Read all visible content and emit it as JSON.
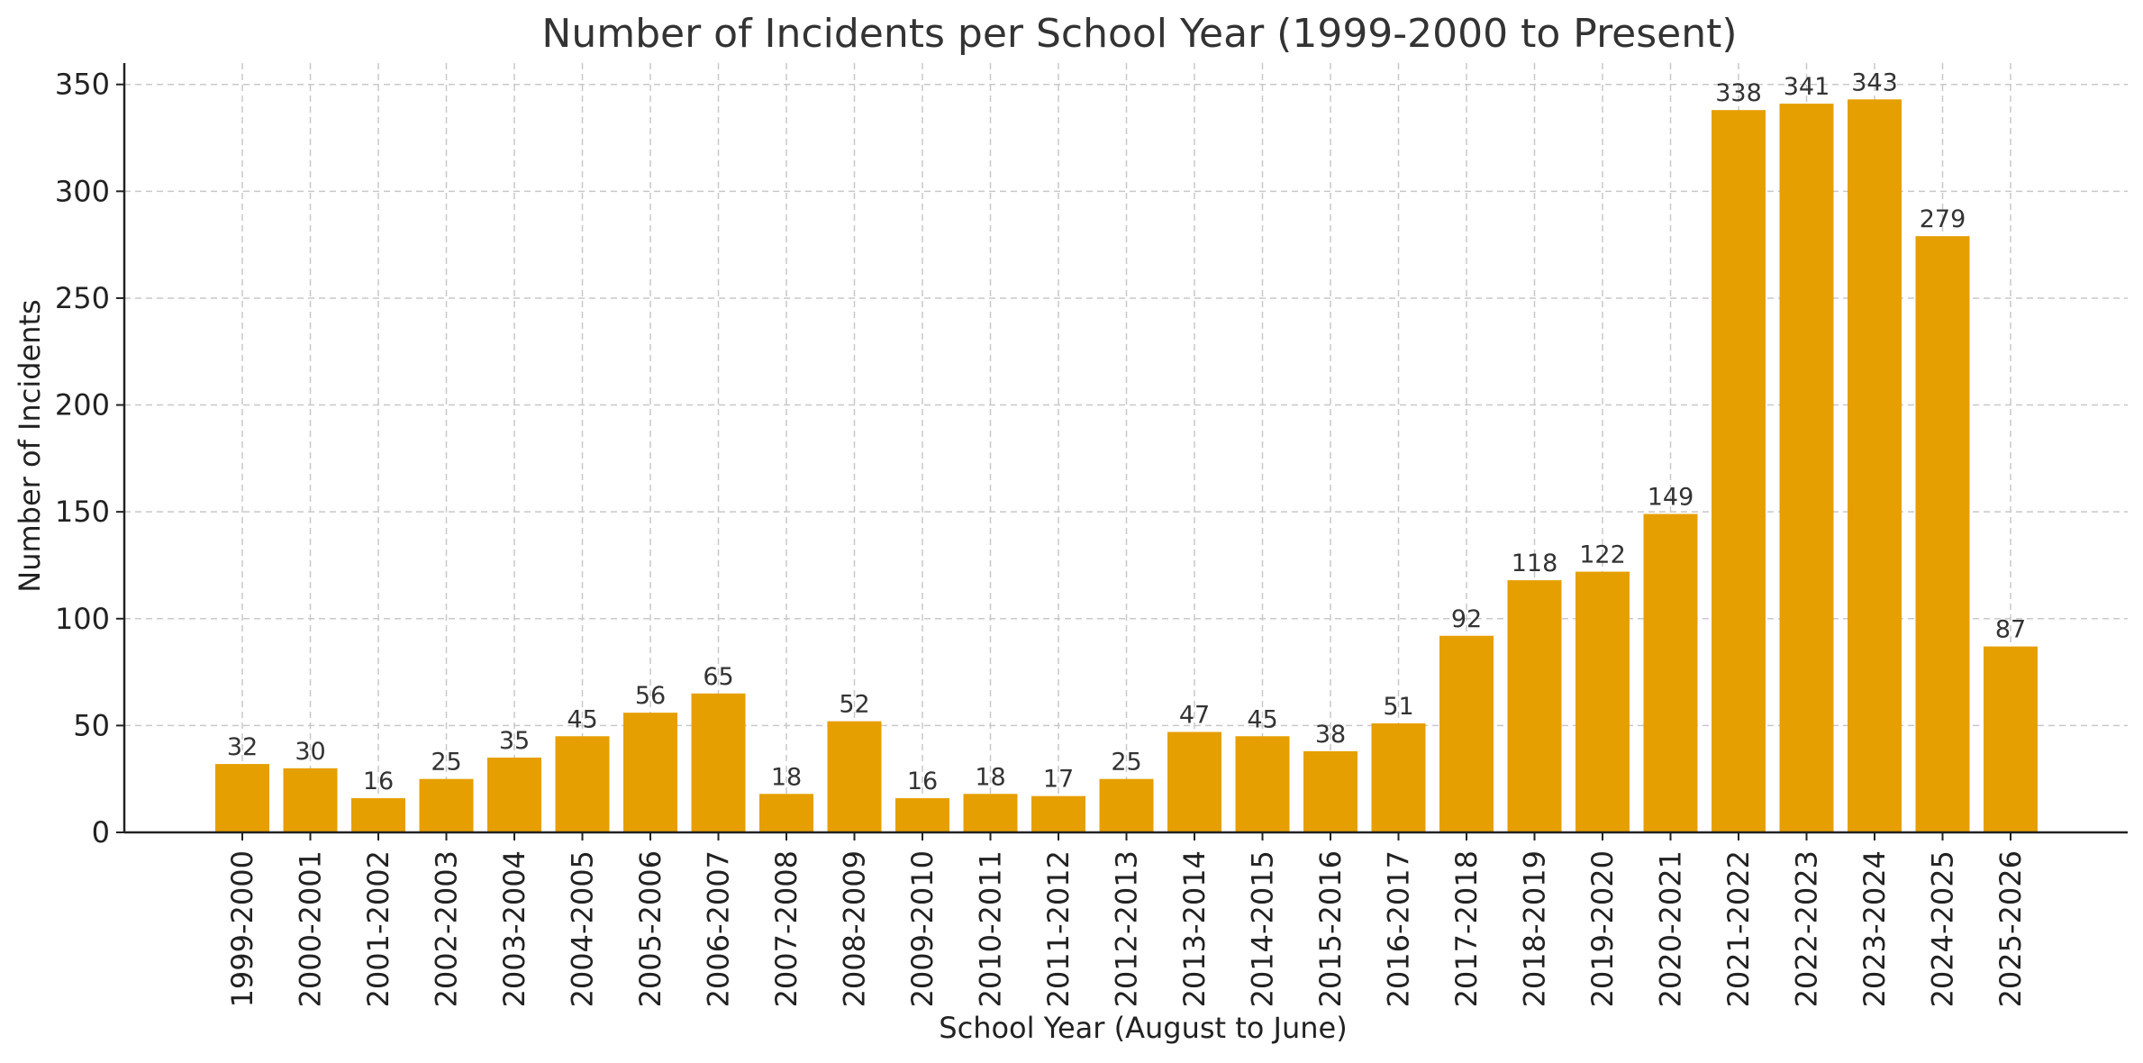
{
  "chart_data": {
    "type": "bar",
    "title": "Number of Incidents per School Year (1999-2000 to Present)",
    "xlabel": "School Year (August to June)",
    "ylabel": "Number of Incidents",
    "categories": [
      "1999-2000",
      "2000-2001",
      "2001-2002",
      "2002-2003",
      "2003-2004",
      "2004-2005",
      "2005-2006",
      "2006-2007",
      "2007-2008",
      "2008-2009",
      "2009-2010",
      "2010-2011",
      "2011-2012",
      "2012-2013",
      "2013-2014",
      "2014-2015",
      "2015-2016",
      "2016-2017",
      "2017-2018",
      "2018-2019",
      "2019-2020",
      "2020-2021",
      "2021-2022",
      "2022-2023",
      "2023-2024",
      "2024-2025",
      "2025-2026"
    ],
    "values": [
      32,
      30,
      16,
      25,
      35,
      45,
      56,
      65,
      18,
      52,
      16,
      18,
      17,
      25,
      47,
      45,
      38,
      51,
      92,
      118,
      122,
      149,
      338,
      341,
      343,
      279,
      87
    ],
    "ylim": [
      0,
      360
    ],
    "yticks": [
      0,
      50,
      100,
      150,
      200,
      250,
      300,
      350
    ],
    "grid": true,
    "bar_color": "#E69F00",
    "data_labels": true
  }
}
